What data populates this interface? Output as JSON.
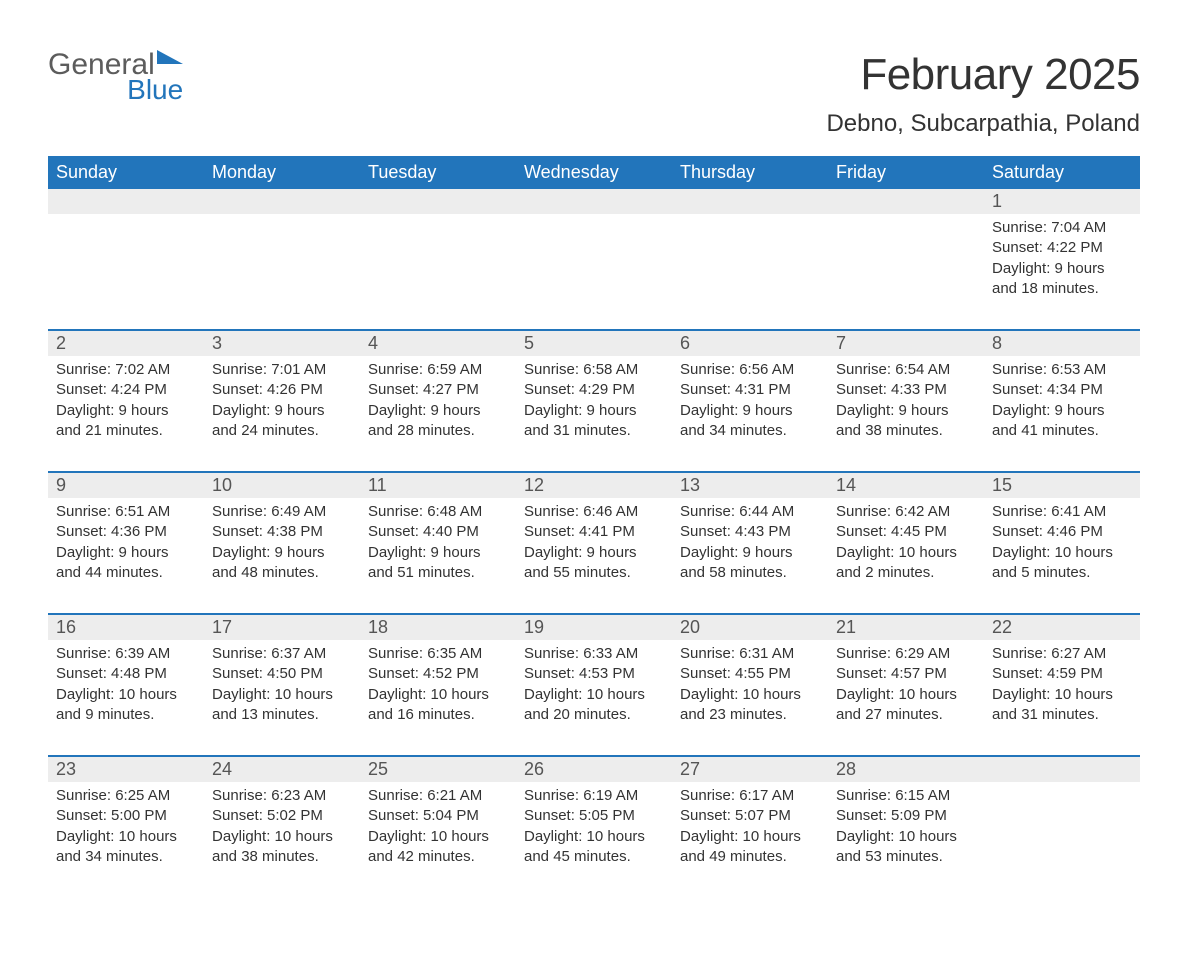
{
  "logo": {
    "line1": "General",
    "line2": "Blue"
  },
  "title": "February 2025",
  "location": "Debno, Subcarpathia, Poland",
  "colors": {
    "header_bg": "#2275bb",
    "header_text": "#ffffff",
    "daynum_bg": "#ededed",
    "row_border": "#2275bb",
    "body_text": "#333333",
    "logo_gray": "#5c5c5c",
    "logo_blue": "#2275bb",
    "page_bg": "#ffffff"
  },
  "days_of_week": [
    "Sunday",
    "Monday",
    "Tuesday",
    "Wednesday",
    "Thursday",
    "Friday",
    "Saturday"
  ],
  "weeks": [
    {
      "nums": [
        "",
        "",
        "",
        "",
        "",
        "",
        "1"
      ],
      "details": [
        "",
        "",
        "",
        "",
        "",
        "",
        "Sunrise: 7:04 AM\nSunset: 4:22 PM\nDaylight: 9 hours and 18 minutes."
      ]
    },
    {
      "nums": [
        "2",
        "3",
        "4",
        "5",
        "6",
        "7",
        "8"
      ],
      "details": [
        "Sunrise: 7:02 AM\nSunset: 4:24 PM\nDaylight: 9 hours and 21 minutes.",
        "Sunrise: 7:01 AM\nSunset: 4:26 PM\nDaylight: 9 hours and 24 minutes.",
        "Sunrise: 6:59 AM\nSunset: 4:27 PM\nDaylight: 9 hours and 28 minutes.",
        "Sunrise: 6:58 AM\nSunset: 4:29 PM\nDaylight: 9 hours and 31 minutes.",
        "Sunrise: 6:56 AM\nSunset: 4:31 PM\nDaylight: 9 hours and 34 minutes.",
        "Sunrise: 6:54 AM\nSunset: 4:33 PM\nDaylight: 9 hours and 38 minutes.",
        "Sunrise: 6:53 AM\nSunset: 4:34 PM\nDaylight: 9 hours and 41 minutes."
      ]
    },
    {
      "nums": [
        "9",
        "10",
        "11",
        "12",
        "13",
        "14",
        "15"
      ],
      "details": [
        "Sunrise: 6:51 AM\nSunset: 4:36 PM\nDaylight: 9 hours and 44 minutes.",
        "Sunrise: 6:49 AM\nSunset: 4:38 PM\nDaylight: 9 hours and 48 minutes.",
        "Sunrise: 6:48 AM\nSunset: 4:40 PM\nDaylight: 9 hours and 51 minutes.",
        "Sunrise: 6:46 AM\nSunset: 4:41 PM\nDaylight: 9 hours and 55 minutes.",
        "Sunrise: 6:44 AM\nSunset: 4:43 PM\nDaylight: 9 hours and 58 minutes.",
        "Sunrise: 6:42 AM\nSunset: 4:45 PM\nDaylight: 10 hours and 2 minutes.",
        "Sunrise: 6:41 AM\nSunset: 4:46 PM\nDaylight: 10 hours and 5 minutes."
      ]
    },
    {
      "nums": [
        "16",
        "17",
        "18",
        "19",
        "20",
        "21",
        "22"
      ],
      "details": [
        "Sunrise: 6:39 AM\nSunset: 4:48 PM\nDaylight: 10 hours and 9 minutes.",
        "Sunrise: 6:37 AM\nSunset: 4:50 PM\nDaylight: 10 hours and 13 minutes.",
        "Sunrise: 6:35 AM\nSunset: 4:52 PM\nDaylight: 10 hours and 16 minutes.",
        "Sunrise: 6:33 AM\nSunset: 4:53 PM\nDaylight: 10 hours and 20 minutes.",
        "Sunrise: 6:31 AM\nSunset: 4:55 PM\nDaylight: 10 hours and 23 minutes.",
        "Sunrise: 6:29 AM\nSunset: 4:57 PM\nDaylight: 10 hours and 27 minutes.",
        "Sunrise: 6:27 AM\nSunset: 4:59 PM\nDaylight: 10 hours and 31 minutes."
      ]
    },
    {
      "nums": [
        "23",
        "24",
        "25",
        "26",
        "27",
        "28",
        ""
      ],
      "details": [
        "Sunrise: 6:25 AM\nSunset: 5:00 PM\nDaylight: 10 hours and 34 minutes.",
        "Sunrise: 6:23 AM\nSunset: 5:02 PM\nDaylight: 10 hours and 38 minutes.",
        "Sunrise: 6:21 AM\nSunset: 5:04 PM\nDaylight: 10 hours and 42 minutes.",
        "Sunrise: 6:19 AM\nSunset: 5:05 PM\nDaylight: 10 hours and 45 minutes.",
        "Sunrise: 6:17 AM\nSunset: 5:07 PM\nDaylight: 10 hours and 49 minutes.",
        "Sunrise: 6:15 AM\nSunset: 5:09 PM\nDaylight: 10 hours and 53 minutes.",
        ""
      ]
    }
  ]
}
